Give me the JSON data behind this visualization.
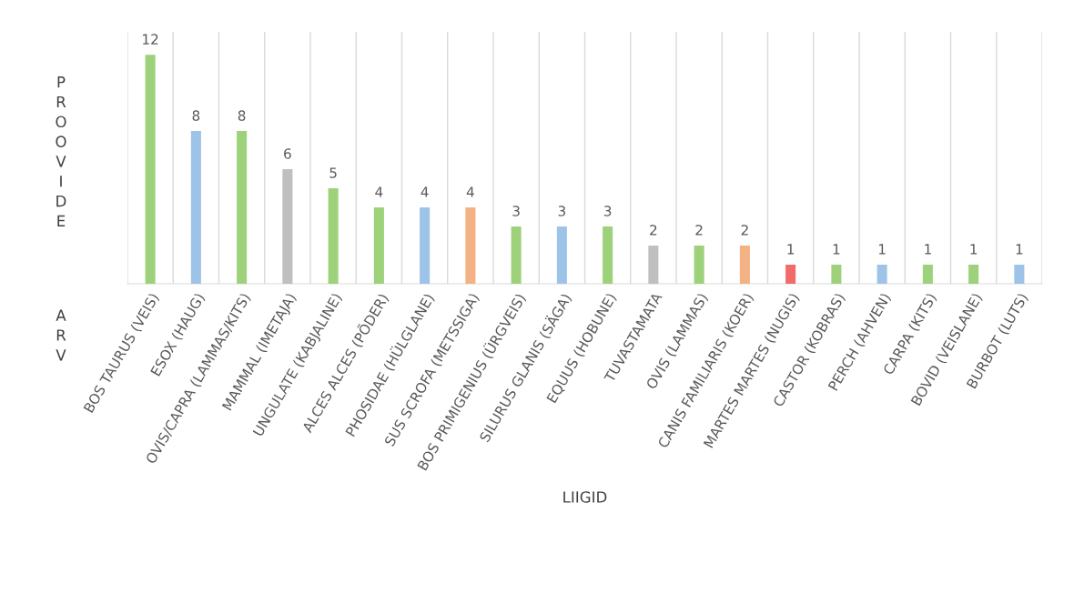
{
  "chart_data": {
    "type": "bar",
    "ylabel": "PROOVIDE ARV",
    "xlabel": "LIIGID",
    "categories": [
      "BOS TAURUS (VEIS)",
      "ESOX (HAUG)",
      "OVIS/CAPRA (LAMMAS/KITS)",
      "MAMMAL (IMETAJA)",
      "UNGULATE (KABJALINE)",
      "ALCES ALCES (PÕDER)",
      "PHOSIDAE (HÜLGLANE)",
      "SUS SCROFA (METSSIGA)",
      "BOS PRIMIGENIUS (ÜRGVEIS)",
      "SILURUS GLANIS (SÄGA)",
      "EQUUS (HOBUNE)",
      "TUVASTAMATA",
      "OVIS (LAMMAS)",
      "CANIS FAMILIARIS (KOER)",
      "MARTES MARTES (NUGIS)",
      "CASTOR (KOBRAS)",
      "PERCH (AHVEN)",
      "CARPA (KITS)",
      "BOVID (VEISLANE)",
      "BURBOT (LUTS)"
    ],
    "values": [
      12,
      8,
      8,
      6,
      5,
      4,
      4,
      4,
      3,
      3,
      3,
      2,
      2,
      2,
      1,
      1,
      1,
      1,
      1,
      1
    ],
    "colors": [
      "#9dd17a",
      "#9ec3e8",
      "#9dd17a",
      "#bfbfbf",
      "#9dd17a",
      "#9dd17a",
      "#9ec3e8",
      "#f4b183",
      "#9dd17a",
      "#9ec3e8",
      "#9dd17a",
      "#bfbfbf",
      "#9dd17a",
      "#f4b183",
      "#f26b6b",
      "#9dd17a",
      "#9ec3e8",
      "#9dd17a",
      "#9dd17a",
      "#9ec3e8"
    ],
    "data_labels": true,
    "grid": "x",
    "legend": false
  }
}
